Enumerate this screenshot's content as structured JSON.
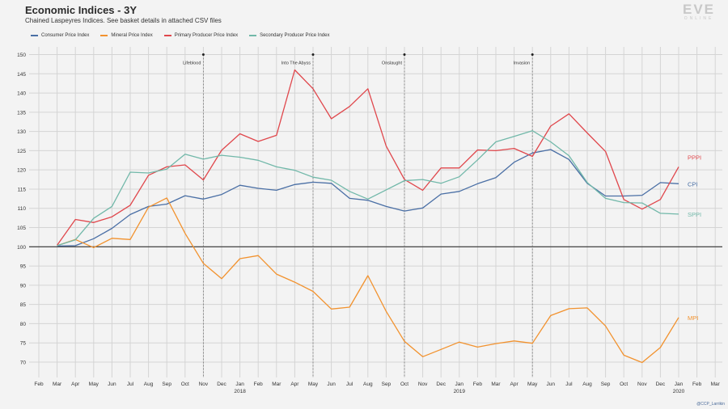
{
  "header": {
    "title": "Economic Indices - 3Y",
    "subtitle": "Chained Laspeyres Indices. See basket details in attached CSV files"
  },
  "logo": {
    "main": "EVE",
    "sub": "ONLINE"
  },
  "credit": "@CCP_Larrikin",
  "colors": {
    "cpi": "#4a6fa5",
    "mpi": "#f2922e",
    "pppi": "#e0474c",
    "sppi": "#71b8a9",
    "grid": "#d4d4d4",
    "baseline": "#333333",
    "event": "#777777"
  },
  "chart_data": {
    "type": "line",
    "title": "Economic Indices - 3Y",
    "ylim": [
      66,
      152
    ],
    "y_ticks": [
      "70",
      "75",
      "80",
      "85",
      "90",
      "95",
      "100",
      "105",
      "110",
      "115",
      "120",
      "125",
      "130",
      "135",
      "140",
      "145",
      "150"
    ],
    "x_ticks": [
      "Feb",
      "Mar",
      "Apr",
      "May",
      "Jun",
      "Jul",
      "Aug",
      "Sep",
      "Oct",
      "Nov",
      "Dec",
      "Jan",
      "Feb",
      "Mar",
      "Apr",
      "May",
      "Jun",
      "Jul",
      "Aug",
      "Sep",
      "Oct",
      "Nov",
      "Dec",
      "Jan",
      "Feb",
      "Mar",
      "Apr",
      "May",
      "Jun",
      "Jul",
      "Aug",
      "Sep",
      "Oct",
      "Nov",
      "Dec",
      "Jan",
      "Feb",
      "Mar"
    ],
    "year_labels": [
      {
        "label": "2018",
        "at_tick": 11
      },
      {
        "label": "2019",
        "at_tick": 23
      },
      {
        "label": "2020",
        "at_tick": 35
      }
    ],
    "baseline": 100,
    "grid": true,
    "legend_position": "top-left",
    "series": [
      {
        "key": "cpi",
        "name": "Consumer Price Index",
        "end_label": "CPI",
        "start_tick": 1,
        "values": [
          100.2,
          100.3,
          102.1,
          104.8,
          108.4,
          110.5,
          111.1,
          113.3,
          112.4,
          113.6,
          116,
          115.2,
          114.7,
          116.2,
          116.8,
          116.5,
          112.6,
          112.1,
          110.5,
          109.3,
          110.1,
          113.7,
          114.4,
          116.4,
          118,
          122,
          124.4,
          125.3,
          122.7,
          116.5,
          113.2,
          113.2,
          113.4,
          116.7,
          116.4
        ]
      },
      {
        "key": "mpi",
        "name": "Mineral Price Index",
        "end_label": "MPI",
        "start_tick": 1,
        "values": [
          100.3,
          101.9,
          99.8,
          102.2,
          101.9,
          110.3,
          112.7,
          103.5,
          95.7,
          91.7,
          96.9,
          97.7,
          92.9,
          90.8,
          88.4,
          83.8,
          84.3,
          92.5,
          83.2,
          75.4,
          71.4,
          73.3,
          75.2,
          73.9,
          74.8,
          75.5,
          74.9,
          82.1,
          83.9,
          84.1,
          79.4,
          71.8,
          69.9,
          73.8,
          81.6
        ]
      },
      {
        "key": "pppi",
        "name": "Primary Producer Price Index",
        "end_label": "PPPI",
        "start_tick": 1,
        "values": [
          100.4,
          107.1,
          106.3,
          107.8,
          110.8,
          118.6,
          120.8,
          121.3,
          117.4,
          125.1,
          129.4,
          127.4,
          129,
          146,
          141.1,
          133.3,
          136.5,
          141.1,
          126.2,
          117.5,
          114.7,
          120.5,
          120.5,
          125.2,
          125,
          125.6,
          123.5,
          131.4,
          134.6,
          129.6,
          124.8,
          112.3,
          109.8,
          112.3,
          120.8
        ]
      },
      {
        "key": "sppi",
        "name": "Secondary Producer Price Index",
        "end_label": "SPPI",
        "start_tick": 1,
        "values": [
          100.3,
          101.8,
          107.4,
          110.5,
          119.4,
          119.2,
          120.2,
          124.1,
          122.8,
          123.8,
          123.3,
          122.5,
          120.8,
          119.9,
          118.1,
          117.3,
          114.4,
          112.4,
          114.8,
          117.2,
          117.5,
          116.5,
          118.2,
          122.6,
          127.3,
          128.7,
          130.2,
          127.3,
          123.7,
          116.7,
          112.6,
          111.5,
          111.4,
          108.7,
          108.5
        ]
      }
    ],
    "annotations": [
      {
        "label": "Lifeblood",
        "at_tick": 9
      },
      {
        "label": "Into The Abyss",
        "at_tick": 15
      },
      {
        "label": "Onslaught",
        "at_tick": 20
      },
      {
        "label": "Invasion",
        "at_tick": 27
      }
    ]
  }
}
